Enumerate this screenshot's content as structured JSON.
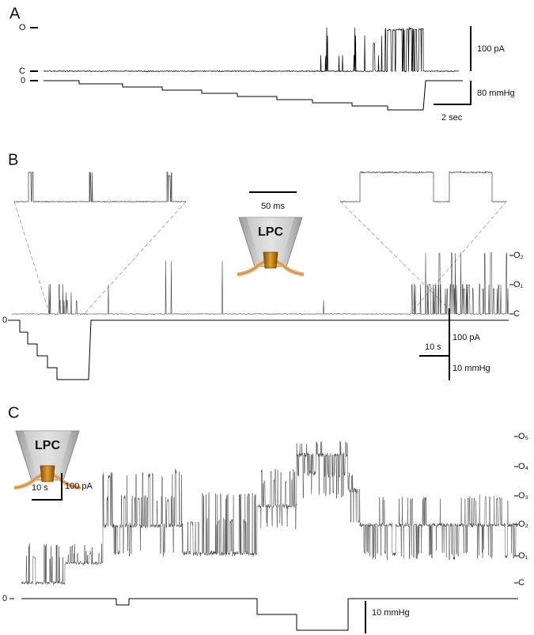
{
  "panels": [
    {
      "label": "A",
      "levels": [
        "O",
        "C",
        "0"
      ],
      "scale_bars": [
        "100 pA",
        "80 mmHg",
        "2 sec"
      ]
    },
    {
      "label": "B",
      "inset_scale": "50 ms",
      "pipette": "LPC",
      "levels": [
        "O₂",
        "O₁",
        "C",
        "0"
      ],
      "scale_bars": [
        "10 s",
        "100 pA",
        "10 mmHg"
      ]
    },
    {
      "label": "C",
      "pipette": "LPC",
      "levels": [
        "O₅",
        "O₄",
        "O₃",
        "O₂",
        "O₁",
        "C",
        "0"
      ],
      "scale_bars": [
        "10 s",
        "100 pA",
        "10 mmHg"
      ]
    }
  ]
}
